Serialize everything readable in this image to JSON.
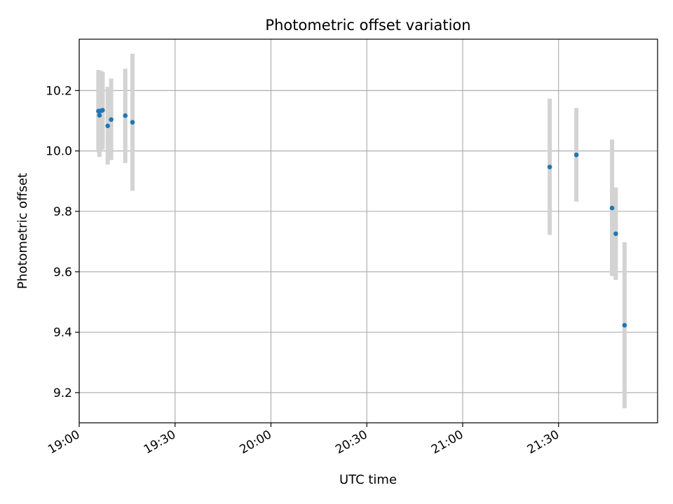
{
  "chart_data": {
    "type": "scatter",
    "title": "Photometric offset variation",
    "xlabel": "UTC time",
    "ylabel": "Photometric offset",
    "x_type": "time",
    "xlim": [
      "19:00",
      "22:01"
    ],
    "ylim": [
      9.1,
      10.37
    ],
    "x_ticks": [
      "19:00",
      "19:30",
      "20:00",
      "20:30",
      "21:00",
      "21:30"
    ],
    "y_ticks": [
      9.2,
      9.4,
      9.6,
      9.8,
      10.0,
      10.2
    ],
    "grid": true,
    "series": [
      {
        "points": [
          {
            "x": "19:06:00",
            "y": 10.132,
            "err_low": 9.995,
            "err_high": 10.268
          },
          {
            "x": "19:06:20",
            "y": 10.118,
            "err_low": 9.98,
            "err_high": 10.255
          },
          {
            "x": "19:06:45",
            "y": 10.133,
            "err_low": 10.0,
            "err_high": 10.265
          },
          {
            "x": "19:07:20",
            "y": 10.135,
            "err_low": 10.005,
            "err_high": 10.262
          },
          {
            "x": "19:08:55",
            "y": 10.083,
            "err_low": 9.955,
            "err_high": 10.212
          },
          {
            "x": "19:10:00",
            "y": 10.104,
            "err_low": 9.97,
            "err_high": 10.24
          },
          {
            "x": "19:14:25",
            "y": 10.117,
            "err_low": 9.96,
            "err_high": 10.272
          },
          {
            "x": "19:16:40",
            "y": 10.095,
            "err_low": 9.868,
            "err_high": 10.322
          },
          {
            "x": "21:27:15",
            "y": 9.947,
            "err_low": 9.722,
            "err_high": 10.173
          },
          {
            "x": "21:35:35",
            "y": 9.987,
            "err_low": 9.832,
            "err_high": 10.142
          },
          {
            "x": "21:46:45",
            "y": 9.811,
            "err_low": 9.586,
            "err_high": 10.038
          },
          {
            "x": "21:47:55",
            "y": 9.726,
            "err_low": 9.573,
            "err_high": 9.879
          },
          {
            "x": "21:50:40",
            "y": 9.423,
            "err_low": 9.148,
            "err_high": 9.698
          }
        ]
      }
    ],
    "colors": {
      "marker": "#1f77b4",
      "errorbar": "#d3d3d3",
      "grid": "#b0b0b0",
      "axes": "#000000"
    }
  }
}
